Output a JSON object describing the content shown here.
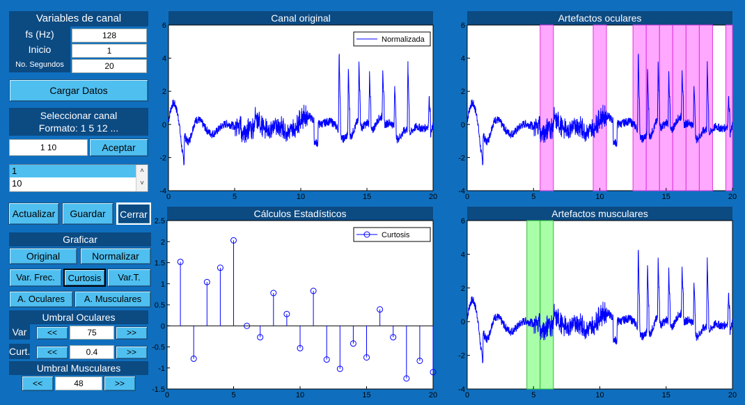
{
  "vars_panel": {
    "title": "Variables de canal",
    "fs_label": "fs (Hz)",
    "fs_value": "128",
    "inicio_label": "Inicio",
    "inicio_value": "1",
    "segundos_label": "No. Segundos",
    "segundos_value": "20"
  },
  "cargar_label": "Cargar Datos",
  "select_panel": {
    "title_line1": "Seleccionar canal",
    "title_line2": "Formato: 1 5 12 ...",
    "input_value": "1 10",
    "accept_label": "Aceptar",
    "list": [
      "1",
      "10"
    ]
  },
  "actions": {
    "actualizar": "Actualizar",
    "guardar": "Guardar",
    "cerrar": "Cerrar"
  },
  "graficar": {
    "title": "Graficar",
    "original": "Original",
    "normalizar": "Normalizar",
    "var_frec": "Var. Frec.",
    "curtosis": "Curtosis",
    "var_t": "Var.T.",
    "a_oculares": "A. Oculares",
    "a_musculares": "A. Musculares"
  },
  "umbral_oculares": {
    "title": "Umbral Oculares",
    "var_label": "Var",
    "var_value": "75",
    "curt_label": "Curt.",
    "curt_value": "0.4",
    "dec": "<<",
    "inc": ">>"
  },
  "umbral_musculares": {
    "title": "Umbral Musculares",
    "value": "48",
    "dec": "<<",
    "inc": ">>"
  },
  "chart_data": [
    {
      "type": "line",
      "title": "Canal original",
      "legend": "Normalizada",
      "xlim": [
        0,
        20
      ],
      "ylim": [
        -4,
        6
      ],
      "xticks": [
        "0",
        "5",
        "10",
        "15",
        "20"
      ],
      "yticks": [
        "-4",
        "-2",
        "0",
        "2",
        "4",
        "6"
      ],
      "series": [
        {
          "name": "Normalizada",
          "color": "#0000ff"
        }
      ]
    },
    {
      "type": "line",
      "title": "Artefactos oculares",
      "xlim": [
        0,
        20
      ],
      "ylim": [
        -4,
        6
      ],
      "xticks": [
        "0",
        "5",
        "10",
        "15",
        "20"
      ],
      "yticks": [
        "-4",
        "-2",
        "0",
        "2",
        "4",
        "6"
      ],
      "highlight_color": "#ff99ff",
      "regions": [
        [
          5.5,
          6.5
        ],
        [
          9.5,
          10.5
        ],
        [
          12.5,
          13.5
        ],
        [
          13.5,
          14.5
        ],
        [
          14.5,
          15.5
        ],
        [
          15.5,
          16.5
        ],
        [
          16.5,
          17.5
        ],
        [
          17.5,
          18.5
        ],
        [
          19.5,
          20
        ]
      ]
    },
    {
      "type": "stem",
      "title": "Cálculos Estadísticos",
      "legend": "Curtosis",
      "xlim": [
        0,
        20
      ],
      "ylim": [
        -1.5,
        2.5
      ],
      "xticks": [
        "0",
        "5",
        "10",
        "15",
        "20"
      ],
      "yticks": [
        "-1.5",
        "-1",
        "-0.5",
        "0",
        "0.5",
        "1",
        "1.5",
        "2",
        "2.5"
      ],
      "x": [
        1,
        2,
        3,
        4,
        5,
        6,
        7,
        8,
        9,
        10,
        11,
        12,
        13,
        14,
        15,
        16,
        17,
        18,
        19,
        20
      ],
      "values": [
        1.52,
        -0.78,
        1.04,
        1.38,
        2.03,
        0.0,
        -0.27,
        0.78,
        0.28,
        -0.53,
        0.83,
        -0.8,
        -1.02,
        -0.42,
        -0.75,
        0.39,
        -0.27,
        -1.25,
        -0.83,
        -1.1
      ]
    },
    {
      "type": "line",
      "title": "Artefactos musculares",
      "xlim": [
        0,
        20
      ],
      "ylim": [
        -4,
        6
      ],
      "xticks": [
        "0",
        "5",
        "10",
        "15",
        "20"
      ],
      "yticks": [
        "-4",
        "-2",
        "0",
        "2",
        "4",
        "6"
      ],
      "highlight_color": "#99ff99",
      "regions": [
        [
          4.5,
          5.5
        ],
        [
          5.5,
          6.5
        ]
      ]
    }
  ]
}
